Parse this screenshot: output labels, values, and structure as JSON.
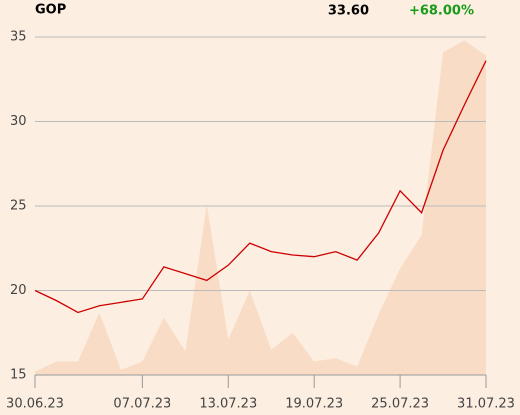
{
  "header": {
    "symbol": "GOP",
    "price": "33.60",
    "change": "+68.00%"
  },
  "chart_data": {
    "type": "line",
    "categories": [
      "30.06.23",
      null,
      null,
      null,
      null,
      "07.07.23",
      null,
      null,
      null,
      "13.07.23",
      null,
      null,
      null,
      "19.07.23",
      null,
      null,
      null,
      "25.07.23",
      null,
      null,
      null,
      "31.07.23"
    ],
    "series": [
      {
        "type": "area",
        "color": "#f9dcc6",
        "values": [
          15.2,
          15.8,
          15.8,
          18.7,
          15.3,
          15.8,
          18.4,
          16.4,
          25.1,
          17.1,
          20.0,
          16.5,
          17.5,
          15.8,
          16.0,
          15.5,
          18.6,
          21.3,
          23.3,
          34.1,
          34.8,
          33.9
        ]
      },
      {
        "type": "line",
        "color": "#cc0000",
        "values": [
          20.0,
          19.4,
          18.7,
          19.1,
          19.3,
          19.5,
          21.4,
          21.0,
          20.6,
          21.5,
          22.8,
          22.3,
          22.1,
          22.0,
          22.3,
          21.8,
          23.4,
          25.9,
          24.6,
          28.3,
          31.0,
          33.6
        ]
      }
    ],
    "ylim": [
      15,
      35
    ],
    "yticks": [
      15,
      20,
      25,
      30,
      35
    ],
    "grid": true
  }
}
